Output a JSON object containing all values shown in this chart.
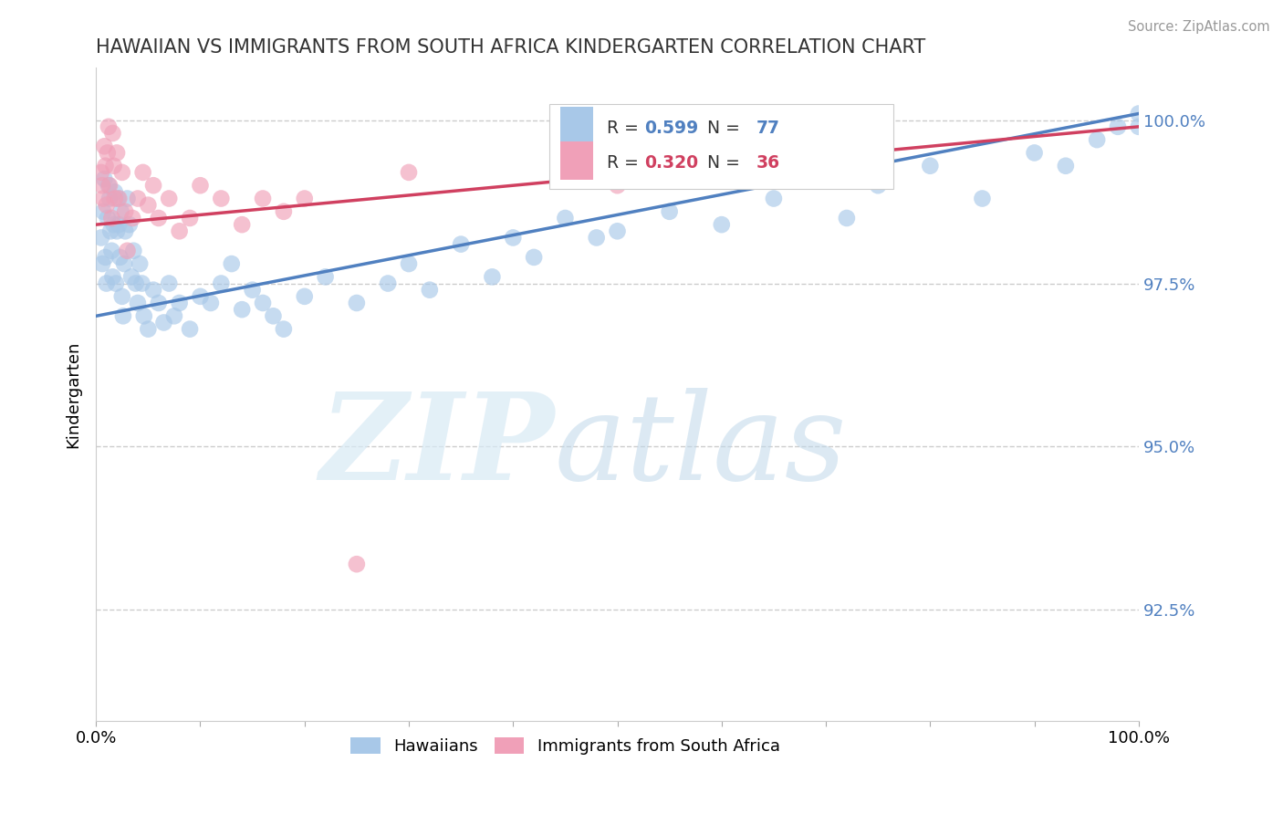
{
  "title": "HAWAIIAN VS IMMIGRANTS FROM SOUTH AFRICA KINDERGARTEN CORRELATION CHART",
  "source": "Source: ZipAtlas.com",
  "ylabel": "Kindergarten",
  "xlim": [
    0.0,
    1.0
  ],
  "ylim": [
    0.908,
    1.008
  ],
  "ytick_positions": [
    0.925,
    0.95,
    0.975,
    1.0
  ],
  "ytick_labels": [
    "92.5%",
    "95.0%",
    "97.5%",
    "100.0%"
  ],
  "blue_R": 0.599,
  "blue_N": 77,
  "pink_R": 0.32,
  "pink_N": 36,
  "blue_color": "#A8C8E8",
  "pink_color": "#F0A0B8",
  "blue_line_color": "#5080C0",
  "pink_line_color": "#D04060",
  "legend_label_blue": "Hawaiians",
  "legend_label_pink": "Immigrants from South Africa",
  "blue_line_x0": 0.0,
  "blue_line_y0": 0.97,
  "blue_line_x1": 1.0,
  "blue_line_y1": 1.001,
  "pink_line_x0": 0.0,
  "pink_line_y0": 0.984,
  "pink_line_x1": 1.0,
  "pink_line_y1": 0.999,
  "blue_x": [
    0.005,
    0.006,
    0.007,
    0.008,
    0.009,
    0.01,
    0.011,
    0.012,
    0.013,
    0.014,
    0.015,
    0.016,
    0.017,
    0.018,
    0.019,
    0.02,
    0.021,
    0.022,
    0.023,
    0.024,
    0.025,
    0.026,
    0.027,
    0.028,
    0.03,
    0.032,
    0.034,
    0.036,
    0.038,
    0.04,
    0.042,
    0.044,
    0.046,
    0.05,
    0.055,
    0.06,
    0.065,
    0.07,
    0.075,
    0.08,
    0.09,
    0.1,
    0.11,
    0.12,
    0.13,
    0.14,
    0.15,
    0.16,
    0.17,
    0.18,
    0.2,
    0.22,
    0.25,
    0.28,
    0.3,
    0.32,
    0.35,
    0.38,
    0.4,
    0.42,
    0.45,
    0.48,
    0.5,
    0.55,
    0.6,
    0.65,
    0.7,
    0.72,
    0.75,
    0.8,
    0.85,
    0.9,
    0.93,
    0.96,
    0.98,
    1.0,
    1.0
  ],
  "blue_y": [
    0.982,
    0.978,
    0.986,
    0.991,
    0.979,
    0.975,
    0.985,
    0.99,
    0.988,
    0.983,
    0.98,
    0.976,
    0.984,
    0.989,
    0.975,
    0.983,
    0.988,
    0.984,
    0.979,
    0.986,
    0.973,
    0.97,
    0.978,
    0.983,
    0.988,
    0.984,
    0.976,
    0.98,
    0.975,
    0.972,
    0.978,
    0.975,
    0.97,
    0.968,
    0.974,
    0.972,
    0.969,
    0.975,
    0.97,
    0.972,
    0.968,
    0.973,
    0.972,
    0.975,
    0.978,
    0.971,
    0.974,
    0.972,
    0.97,
    0.968,
    0.973,
    0.976,
    0.972,
    0.975,
    0.978,
    0.974,
    0.981,
    0.976,
    0.982,
    0.979,
    0.985,
    0.982,
    0.983,
    0.986,
    0.984,
    0.988,
    0.992,
    0.985,
    0.99,
    0.993,
    0.988,
    0.995,
    0.993,
    0.997,
    0.999,
    0.999,
    1.001
  ],
  "pink_x": [
    0.005,
    0.006,
    0.007,
    0.008,
    0.009,
    0.01,
    0.011,
    0.012,
    0.013,
    0.015,
    0.016,
    0.017,
    0.018,
    0.02,
    0.022,
    0.025,
    0.028,
    0.03,
    0.035,
    0.04,
    0.045,
    0.05,
    0.055,
    0.06,
    0.07,
    0.08,
    0.09,
    0.1,
    0.12,
    0.14,
    0.16,
    0.18,
    0.2,
    0.25,
    0.3,
    0.5
  ],
  "pink_y": [
    0.992,
    0.99,
    0.988,
    0.996,
    0.993,
    0.987,
    0.995,
    0.999,
    0.99,
    0.985,
    0.998,
    0.993,
    0.988,
    0.995,
    0.988,
    0.992,
    0.986,
    0.98,
    0.985,
    0.988,
    0.992,
    0.987,
    0.99,
    0.985,
    0.988,
    0.983,
    0.985,
    0.99,
    0.988,
    0.984,
    0.988,
    0.986,
    0.988,
    0.932,
    0.992,
    0.99
  ]
}
